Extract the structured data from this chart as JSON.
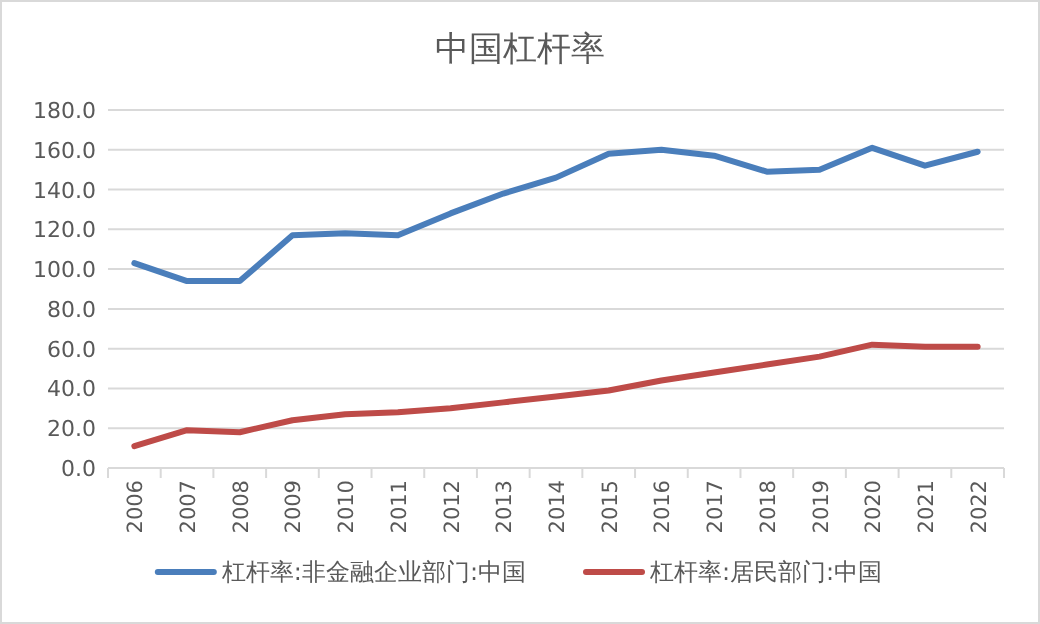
{
  "chart_data": {
    "type": "line",
    "title": "中国杠杆率",
    "categories": [
      "2006",
      "2007",
      "2008",
      "2009",
      "2010",
      "2011",
      "2012",
      "2013",
      "2014",
      "2015",
      "2016",
      "2017",
      "2018",
      "2019",
      "2020",
      "2021",
      "2022"
    ],
    "series": [
      {
        "name": "杠杆率:非金融企业部门:中国",
        "color": "#4a7ebb",
        "values": [
          103,
          94,
          94,
          117,
          118,
          117,
          128,
          138,
          146,
          158,
          160,
          157,
          149,
          150,
          161,
          152,
          159
        ]
      },
      {
        "name": "杠杆率:居民部门:中国",
        "color": "#be4b48",
        "values": [
          11,
          19,
          18,
          24,
          27,
          28,
          30,
          33,
          36,
          39,
          44,
          48,
          52,
          56,
          62,
          61,
          61
        ]
      }
    ],
    "ylim": [
      0,
      180
    ],
    "yticks": [
      {
        "value": 0,
        "label": "0.0"
      },
      {
        "value": 20,
        "label": "20.0"
      },
      {
        "value": 40,
        "label": "40.0"
      },
      {
        "value": 60,
        "label": "60.0"
      },
      {
        "value": 80,
        "label": "80.0"
      },
      {
        "value": 100,
        "label": "100.0"
      },
      {
        "value": 120,
        "label": "120.0"
      },
      {
        "value": 140,
        "label": "140.0"
      },
      {
        "value": 160,
        "label": "160.0"
      },
      {
        "value": 180,
        "label": "180.0"
      }
    ],
    "grid": "y",
    "legend": "bottom",
    "marker": "none",
    "line_style": "solid"
  }
}
